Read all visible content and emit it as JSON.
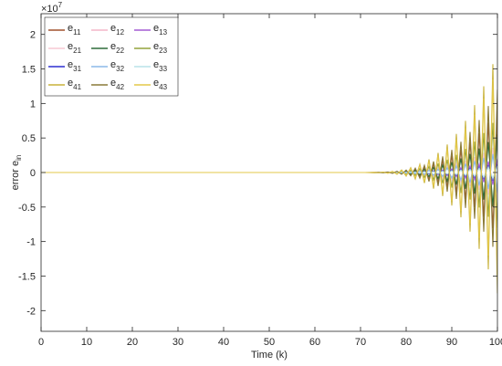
{
  "chart_data": {
    "type": "line",
    "title": "",
    "xlabel": "Time (k)",
    "ylabel_main": "error e",
    "ylabel_sub": "in",
    "exponent_base": "×10",
    "exponent_power": "7",
    "xlim": [
      0,
      100
    ],
    "ylim": [
      -2.3,
      2.3
    ],
    "grid": false,
    "legend_position": "top-left",
    "x_ticks": [
      0,
      10,
      20,
      30,
      40,
      50,
      60,
      70,
      80,
      90,
      100
    ],
    "x_tick_labels": [
      "0",
      "10",
      "20",
      "30",
      "40",
      "50",
      "60",
      "70",
      "80",
      "90",
      "100"
    ],
    "y_ticks": [
      2,
      1.5,
      1,
      0.5,
      0,
      -0.5,
      -1,
      -1.5,
      -2
    ],
    "y_tick_labels": [
      "2",
      "1.5",
      "1",
      "0.5",
      "0",
      "-0.5",
      "-1",
      "-1.5",
      "-2"
    ],
    "growth_onset_k": 70,
    "series": [
      {
        "name": "e",
        "sub": "11",
        "color": "#a0522d",
        "amp_end": 0.9
      },
      {
        "name": "e",
        "sub": "12",
        "color": "#f4b6c8",
        "amp_end": 0.35
      },
      {
        "name": "e",
        "sub": "13",
        "color": "#a35bd3",
        "amp_end": 0.2
      },
      {
        "name": "e",
        "sub": "21",
        "color": "#f7c9d4",
        "amp_end": 0.4
      },
      {
        "name": "e",
        "sub": "22",
        "color": "#2f6b3a",
        "amp_end": 0.55
      },
      {
        "name": "e",
        "sub": "23",
        "color": "#93a33c",
        "amp_end": 0.8
      },
      {
        "name": "e",
        "sub": "31",
        "color": "#2d2fd1",
        "amp_end": 0.12
      },
      {
        "name": "e",
        "sub": "32",
        "color": "#8bb8e8",
        "amp_end": 0.3
      },
      {
        "name": "e",
        "sub": "33",
        "color": "#b9e3e8",
        "amp_end": 0.1
      },
      {
        "name": "e",
        "sub": "41",
        "color": "#c8b23a",
        "amp_end": 1.75
      },
      {
        "name": "e",
        "sub": "42",
        "color": "#8a7a38",
        "amp_end": 1.2
      },
      {
        "name": "e",
        "sub": "43",
        "color": "#e3c84a",
        "amp_end": 1.5
      }
    ]
  }
}
